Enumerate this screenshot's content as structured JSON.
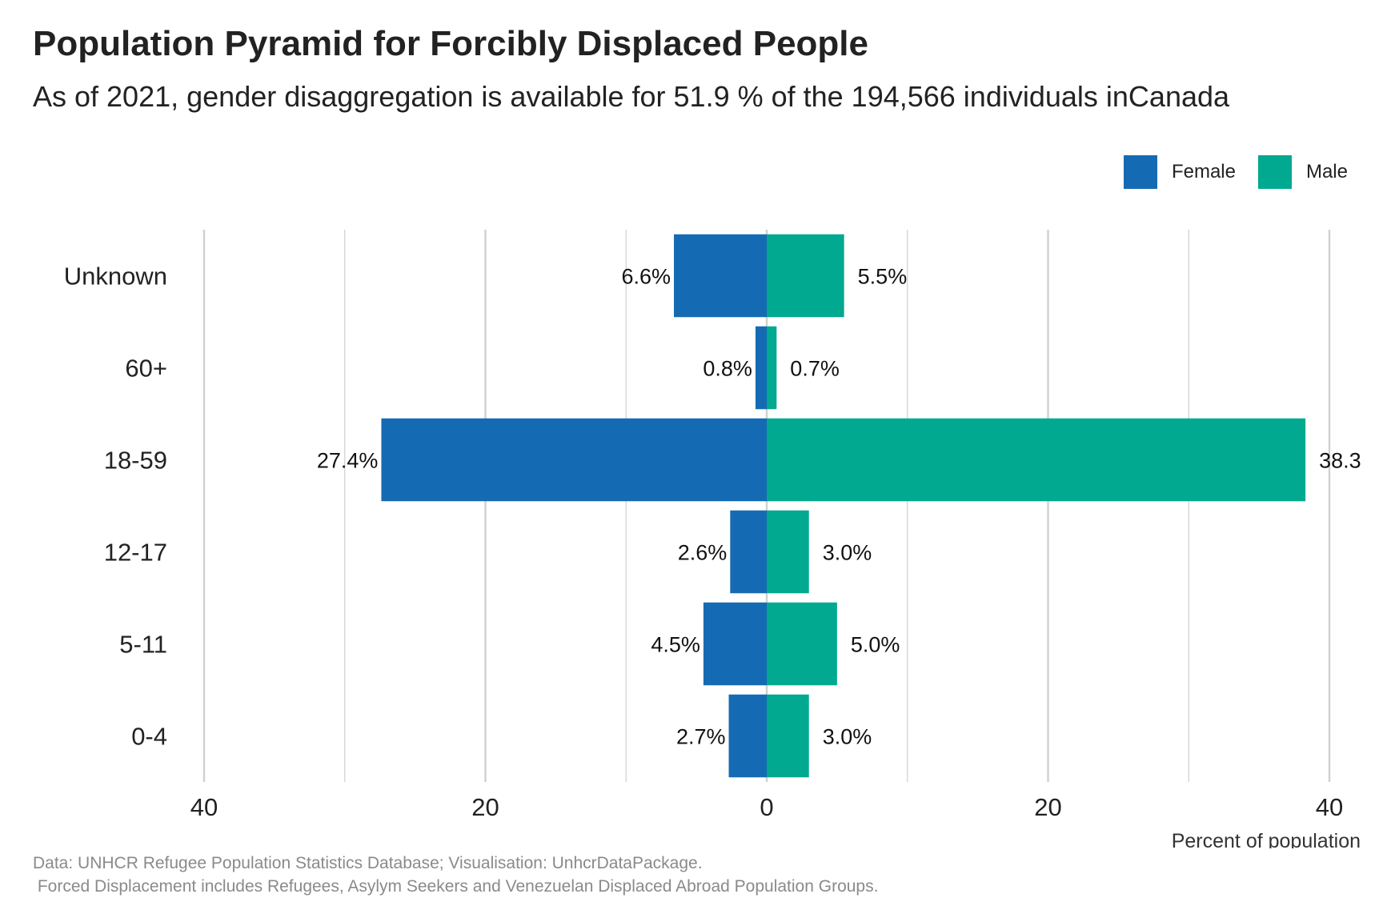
{
  "title": "Population Pyramid for Forcibly Displaced People",
  "subtitle": "As of 2021, gender disaggregation is available for 51.9 % of the 194,566 individuals inCanada",
  "caption_line1": "Data: UNHCR Refugee Population Statistics Database; Visualisation: UnhcrDataPackage.",
  "caption_line2": " Forced Displacement includes Refugees, Asylym Seekers and Venezuelan Displaced Abroad Population Groups.",
  "legend": {
    "female_label": "Female",
    "male_label": "Male"
  },
  "colors": {
    "female": "#156BB3",
    "male": "#00A98F",
    "grid": "#d0d0d0"
  },
  "chart_data": {
    "type": "bar",
    "orientation": "horizontal-diverging",
    "categories": [
      "Unknown",
      "60+",
      "18-59",
      "12-17",
      "5-11",
      "0-4"
    ],
    "series": [
      {
        "name": "Female",
        "values": [
          6.6,
          0.8,
          27.4,
          2.6,
          4.5,
          2.7
        ],
        "labels": [
          "6.6%",
          "0.8%",
          "27.4%",
          "2.6%",
          "4.5%",
          "2.7%"
        ]
      },
      {
        "name": "Male",
        "values": [
          5.5,
          0.7,
          38.3,
          3.0,
          5.0,
          3.0
        ],
        "labels": [
          "5.5%",
          "0.7%",
          "38.3",
          "3.0%",
          "5.0%",
          "3.0%"
        ]
      }
    ],
    "xlabel": "Percent of population",
    "xlim": [
      -40,
      40
    ],
    "xticks": [
      -40,
      -20,
      0,
      20,
      40
    ],
    "xtick_labels": [
      "40",
      "20",
      "0",
      "20",
      "40"
    ],
    "minor_gridlines": [
      -30,
      -10,
      10,
      30
    ],
    "grid": true,
    "legend_position": "top-right"
  }
}
